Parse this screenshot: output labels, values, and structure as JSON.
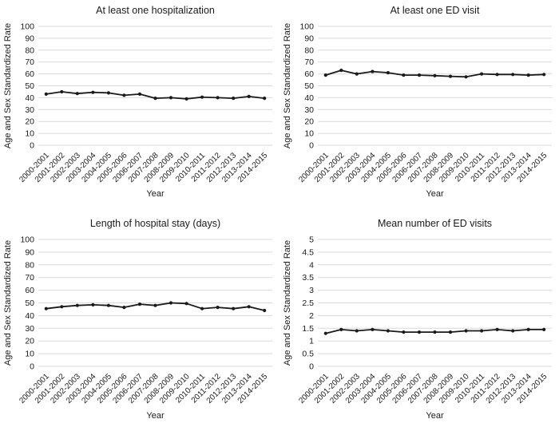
{
  "page": {
    "background": "#ffffff"
  },
  "colors": {
    "series_line": "#1a1a1a",
    "marker": "#1a1a1a",
    "text": "#1a1a1a",
    "gridline": "#d9d9d9"
  },
  "chart_data": {
    "type": "line",
    "layout": "2x2-grid",
    "grid": true,
    "legend": false,
    "marker": "circle",
    "xlabel": "Year",
    "ylabel": "Age and Sex Standardized Rate",
    "categories": [
      "2000-2001",
      "2001-2002",
      "2002-2003",
      "2003-2004",
      "2004-2005",
      "2005-2006",
      "2006-2007",
      "2007-2008",
      "2008-2009",
      "2009-2010",
      "2010-2011",
      "2011-2012",
      "2012-2013",
      "2013-2014",
      "2014-2015"
    ],
    "panels": [
      {
        "title": "At least one hospitalization",
        "ylim": [
          0,
          100
        ],
        "ytick_step": 10,
        "values": [
          43,
          45,
          43.5,
          44.5,
          44,
          42,
          43,
          39.5,
          40,
          39,
          40.5,
          40,
          39.5,
          41,
          39.5
        ]
      },
      {
        "title": "At least one ED visit",
        "ylim": [
          0,
          100
        ],
        "ytick_step": 10,
        "values": [
          59,
          63,
          60,
          62,
          61,
          59,
          59,
          58.5,
          58,
          57.5,
          60,
          59.5,
          59.5,
          59,
          59.5
        ]
      },
      {
        "title": "Length of hospital stay (days)",
        "ylim": [
          0,
          100
        ],
        "ytick_step": 10,
        "values": [
          45.5,
          47,
          48,
          48.5,
          48,
          46.5,
          49,
          48,
          50,
          49.5,
          45.5,
          46.5,
          45.5,
          47,
          44
        ]
      },
      {
        "title": "Mean number of ED visits",
        "ylim": [
          0,
          5
        ],
        "ytick_step": 0.5,
        "values": [
          1.3,
          1.45,
          1.4,
          1.45,
          1.4,
          1.35,
          1.35,
          1.35,
          1.35,
          1.4,
          1.4,
          1.45,
          1.4,
          1.45,
          1.45
        ]
      }
    ]
  }
}
